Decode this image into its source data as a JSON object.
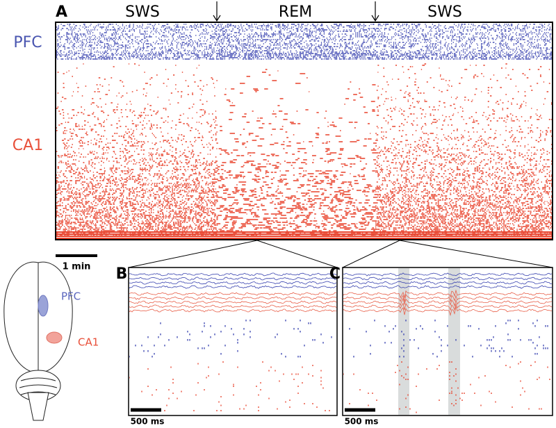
{
  "panel_a": {
    "letter": "A",
    "states": [
      "SWS",
      "REM",
      "SWS"
    ],
    "regions": [
      "PFC",
      "CA1"
    ],
    "scale_bar": "1 min"
  },
  "panel_b": {
    "letter": "B",
    "scale_bar": "500 ms"
  },
  "panel_c": {
    "letter": "C",
    "scale_bar": "500 ms"
  },
  "brain": {
    "labels": [
      "PFC",
      "CA1"
    ]
  }
}
